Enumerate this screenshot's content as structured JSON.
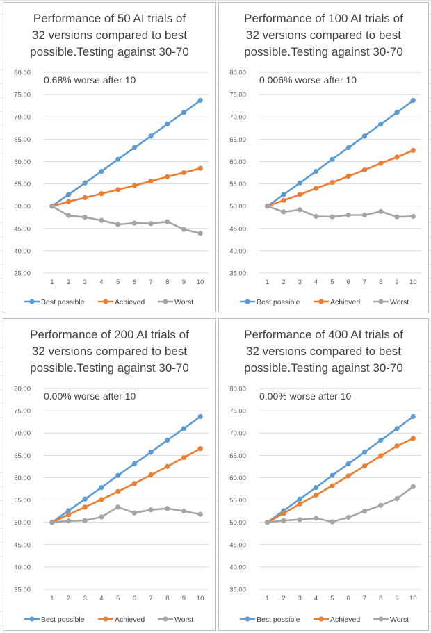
{
  "colors": {
    "best": "#5b9bd5",
    "achieved": "#ed7d31",
    "worst": "#a5a5a5",
    "gridline": "#d9d9d9"
  },
  "chart_data": [
    {
      "type": "line",
      "title": "Performance of 50 AI trials of 32 versions compared to best possible.Testing against 30-70",
      "title_lines": [
        "Performance of 50 AI trials of",
        "32 versions compared to best",
        "possible.Testing against 30-70"
      ],
      "annotation": "0.68% worse after 10",
      "x": [
        1,
        2,
        3,
        4,
        5,
        6,
        7,
        8,
        9,
        10
      ],
      "x_tick_labels": [
        "1",
        "2",
        "3",
        "4",
        "5",
        "6",
        "7",
        "8",
        "9",
        "10"
      ],
      "ylim": [
        35,
        80
      ],
      "y_tick_labels": [
        "80.00",
        "75.00",
        "70.00",
        "65.00",
        "60.00",
        "55.00",
        "50.00",
        "45.00",
        "40.00",
        "35.00"
      ],
      "grid": true,
      "legend_position": "bottom",
      "series": [
        {
          "name": "Best possible",
          "color_key": "best",
          "values": [
            50.0,
            52.6,
            55.2,
            57.8,
            60.5,
            63.1,
            65.7,
            68.4,
            71.0,
            73.7
          ]
        },
        {
          "name": "Achieved",
          "color_key": "achieved",
          "values": [
            50.0,
            51.0,
            51.9,
            52.8,
            53.7,
            54.6,
            55.6,
            56.6,
            57.5,
            58.5
          ]
        },
        {
          "name": "Worst",
          "color_key": "worst",
          "values": [
            50.0,
            47.9,
            47.5,
            46.8,
            45.9,
            46.2,
            46.1,
            46.5,
            44.8,
            43.9
          ]
        }
      ]
    },
    {
      "type": "line",
      "title": "Performance of 100 AI trials of 32 versions compared to best possible.Testing against 30-70",
      "title_lines": [
        "Performance of 100 AI trials of",
        "32 versions compared to best",
        "possible.Testing against 30-70"
      ],
      "annotation": "0.006% worse after 10",
      "x": [
        1,
        2,
        3,
        4,
        5,
        6,
        7,
        8,
        9,
        10
      ],
      "x_tick_labels": [
        "1",
        "2",
        "3",
        "4",
        "5",
        "6",
        "7",
        "8",
        "9",
        "10"
      ],
      "ylim": [
        35,
        80
      ],
      "y_tick_labels": [
        "80.00",
        "75.00",
        "70.00",
        "65.00",
        "60.00",
        "55.00",
        "50.00",
        "45.00",
        "40.00",
        "35.00"
      ],
      "grid": true,
      "legend_position": "bottom",
      "series": [
        {
          "name": "Best possible",
          "color_key": "best",
          "values": [
            50.0,
            52.6,
            55.2,
            57.8,
            60.5,
            63.1,
            65.7,
            68.4,
            71.0,
            73.7
          ]
        },
        {
          "name": "Achieved",
          "color_key": "achieved",
          "values": [
            50.0,
            51.3,
            52.6,
            54.0,
            55.3,
            56.7,
            58.1,
            59.6,
            61.0,
            62.5
          ]
        },
        {
          "name": "Worst",
          "color_key": "worst",
          "values": [
            50.0,
            48.7,
            49.2,
            47.7,
            47.6,
            48.0,
            48.0,
            48.8,
            47.6,
            47.7
          ]
        }
      ]
    },
    {
      "type": "line",
      "title": "Performance of 200 AI trials of 32 versions compared to best possible.Testing against 30-70",
      "title_lines": [
        "Performance of 200 AI trials of",
        "32 versions compared to best",
        "possible.Testing against 30-70"
      ],
      "annotation": "0.00% worse after 10",
      "x": [
        1,
        2,
        3,
        4,
        5,
        6,
        7,
        8,
        9,
        10
      ],
      "x_tick_labels": [
        "1",
        "2",
        "3",
        "4",
        "5",
        "6",
        "7",
        "8",
        "9",
        "10"
      ],
      "ylim": [
        35,
        80
      ],
      "y_tick_labels": [
        "80.00",
        "75.00",
        "70.00",
        "65.00",
        "60.00",
        "55.00",
        "50.00",
        "45.00",
        "40.00",
        "35.00"
      ],
      "grid": true,
      "legend_position": "bottom",
      "series": [
        {
          "name": "Best possible",
          "color_key": "best",
          "values": [
            50.0,
            52.6,
            55.2,
            57.8,
            60.5,
            63.1,
            65.7,
            68.4,
            71.0,
            73.7
          ]
        },
        {
          "name": "Achieved",
          "color_key": "achieved",
          "values": [
            50.0,
            51.7,
            53.4,
            55.1,
            56.9,
            58.7,
            60.6,
            62.5,
            64.5,
            66.5
          ]
        },
        {
          "name": "Worst",
          "color_key": "worst",
          "values": [
            50.0,
            50.3,
            50.4,
            51.2,
            53.4,
            52.1,
            52.8,
            53.1,
            52.5,
            51.8
          ]
        }
      ]
    },
    {
      "type": "line",
      "title": "Performance of 400 AI trials of 32 versions compared to best possible.Testing against 30-70",
      "title_lines": [
        "Performance of 400 AI trials of",
        "32 versions compared to best",
        "possible.Testing against 30-70"
      ],
      "annotation": "0.00% worse after 10",
      "x": [
        1,
        2,
        3,
        4,
        5,
        6,
        7,
        8,
        9,
        10
      ],
      "x_tick_labels": [
        "1",
        "2",
        "3",
        "4",
        "5",
        "6",
        "7",
        "8",
        "9",
        "10"
      ],
      "ylim": [
        35,
        80
      ],
      "y_tick_labels": [
        "80.00",
        "75.00",
        "70.00",
        "65.00",
        "60.00",
        "55.00",
        "50.00",
        "45.00",
        "40.00",
        "35.00"
      ],
      "grid": true,
      "legend_position": "bottom",
      "series": [
        {
          "name": "Best possible",
          "color_key": "best",
          "values": [
            50.0,
            52.6,
            55.2,
            57.8,
            60.5,
            63.1,
            65.7,
            68.4,
            71.0,
            73.7
          ]
        },
        {
          "name": "Achieved",
          "color_key": "achieved",
          "values": [
            50.0,
            52.0,
            54.1,
            56.1,
            58.2,
            60.4,
            62.6,
            64.9,
            67.1,
            68.8
          ]
        },
        {
          "name": "Worst",
          "color_key": "worst",
          "values": [
            50.0,
            50.4,
            50.6,
            50.9,
            50.1,
            51.1,
            52.5,
            53.8,
            55.3,
            58.0
          ]
        }
      ]
    }
  ]
}
